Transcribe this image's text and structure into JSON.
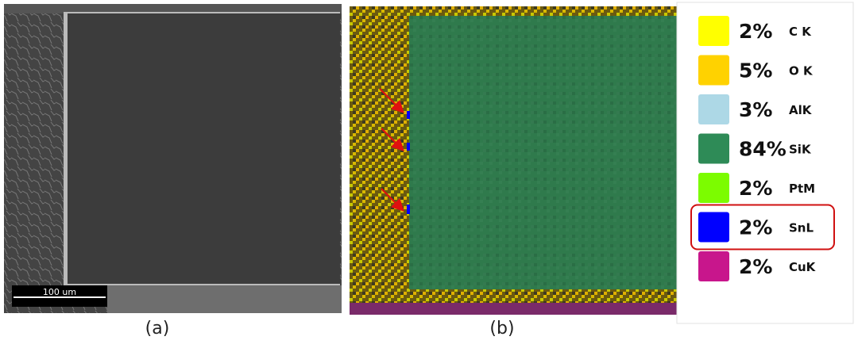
{
  "figure": {
    "panel_a": {
      "caption": "(a)",
      "scale_bar": "100 um"
    },
    "panel_b": {
      "caption": "(b)"
    },
    "legend": {
      "items": [
        {
          "percent": "2%",
          "element": "C K",
          "color": "#ffff00"
        },
        {
          "percent": "5%",
          "element": "O K",
          "color": "#ffd200"
        },
        {
          "percent": "3%",
          "element": "AlK",
          "color": "#add8e6"
        },
        {
          "percent": "84%",
          "element": "SiK",
          "color": "#2e8b57"
        },
        {
          "percent": "2%",
          "element": "PtM",
          "color": "#7cfc00"
        },
        {
          "percent": "2%",
          "element": "SnL",
          "color": "#0000ff"
        },
        {
          "percent": "2%",
          "element": "CuK",
          "color": "#c8168c"
        }
      ],
      "highlighted": 5
    }
  }
}
